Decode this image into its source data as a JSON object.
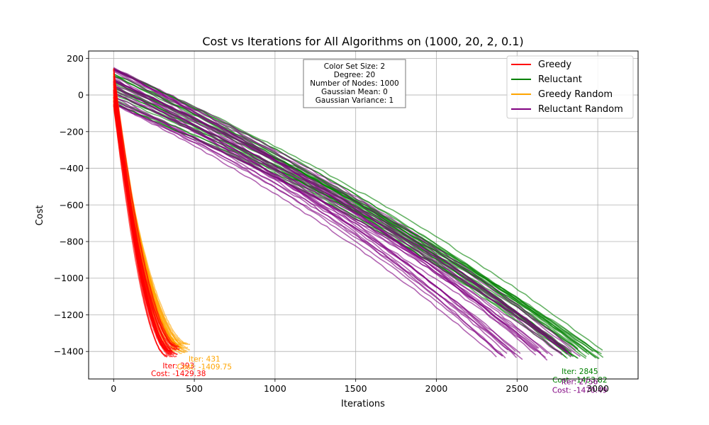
{
  "chart_data": {
    "type": "line",
    "title": "Cost vs Iterations for All Algorithms on (1000, 20, 2, 0.1)",
    "xlabel": "Iterations",
    "ylabel": "Cost",
    "xlim": [
      -155,
      3250
    ],
    "ylim": [
      -1550,
      240
    ],
    "x_ticks": [
      0,
      500,
      1000,
      1500,
      2000,
      2500,
      3000
    ],
    "y_ticks": [
      200,
      0,
      -200,
      -400,
      -600,
      -800,
      -1000,
      -1200,
      -1400
    ],
    "grid": true,
    "legend_position": "top-right",
    "info_box": [
      "Color Set Size: 2",
      "Degree: 20",
      "Number of Nodes: 1000",
      "Gaussian Mean: 0",
      "Gaussian Variance: 1"
    ],
    "series": [
      {
        "name": "Greedy",
        "color": "#ff0000",
        "runs": 30,
        "start_cost_range": [
          -60,
          150
        ],
        "final_iter_range": [
          330,
          410
        ],
        "final_cost_range": [
          -1430,
          -1360
        ],
        "best": {
          "iter": 393,
          "cost": -1429.38
        },
        "annotation_iter": "Iter: 393",
        "annotation_cost": "Cost: -1429.38"
      },
      {
        "name": "Reluctant",
        "color": "#008000",
        "runs": 30,
        "start_cost_range": [
          -60,
          150
        ],
        "final_iter_range": [
          2800,
          3100
        ],
        "final_cost_range": [
          -1440,
          -1380
        ],
        "best": {
          "iter": 2845,
          "cost": -1453.82
        },
        "annotation_iter": "Iter: 2845",
        "annotation_cost": "Cost: -1453.82"
      },
      {
        "name": "Greedy Random",
        "color": "#ffa500",
        "runs": 30,
        "start_cost_range": [
          -60,
          150
        ],
        "final_iter_range": [
          370,
          480
        ],
        "final_cost_range": [
          -1410,
          -1340
        ],
        "best": {
          "iter": 431,
          "cost": -1409.75
        },
        "annotation_iter": "Iter: 431",
        "annotation_cost": "Cost: -1409.75"
      },
      {
        "name": "Reluctant Random",
        "color": "#800080",
        "runs": 30,
        "start_cost_range": [
          -80,
          150
        ],
        "final_iter_range": [
          2300,
          2900
        ],
        "final_cost_range": [
          -1450,
          -1380
        ],
        "best": {
          "iter": 2756,
          "cost": -1470.49
        },
        "annotation_iter": "Iter: 2756",
        "annotation_cost": "Cost: -1470.49"
      }
    ]
  }
}
